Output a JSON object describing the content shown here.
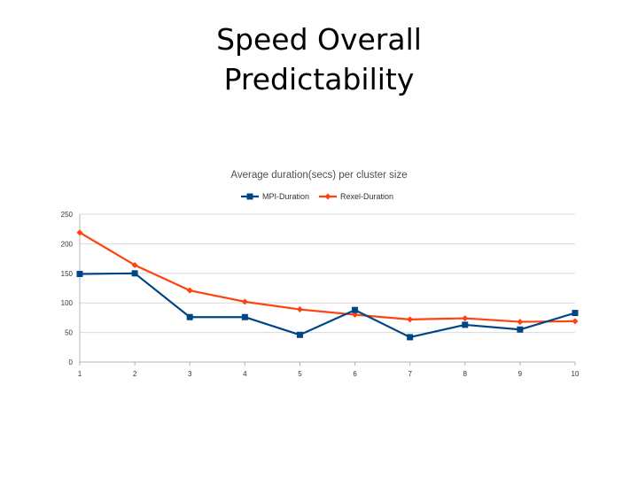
{
  "slide": {
    "title_line1": "Speed Overall",
    "title_line2": "Predictability"
  },
  "chart_data": {
    "type": "line",
    "title": "Average duration(secs) per cluster size",
    "xlabel": "",
    "ylabel": "",
    "x": [
      1,
      2,
      3,
      4,
      5,
      6,
      7,
      8,
      9,
      10
    ],
    "ylim": [
      0,
      250
    ],
    "yticks": [
      0,
      50,
      100,
      150,
      200,
      250
    ],
    "grid": true,
    "legend": "top",
    "series": [
      {
        "name": "MPI-Duration",
        "color": "#004586",
        "marker": "square",
        "values": [
          149,
          150,
          76,
          76,
          46,
          88,
          42,
          63,
          55,
          83
        ]
      },
      {
        "name": "Rexel-Duration",
        "color": "#ff420e",
        "marker": "diamond",
        "values": [
          219,
          164,
          121,
          102,
          89,
          80,
          72,
          74,
          68,
          69
        ]
      }
    ]
  }
}
